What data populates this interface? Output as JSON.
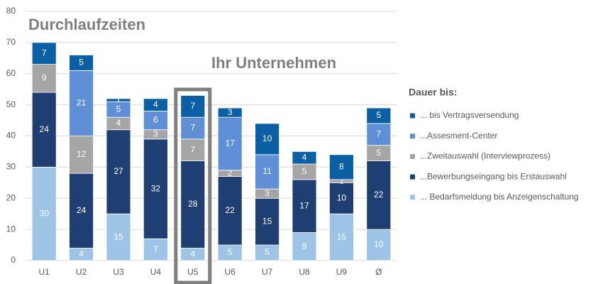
{
  "chart_data": {
    "type": "stacked_bar",
    "title": "Durchlaufzeiten",
    "annotation": "Ihr Unternehmen",
    "legend_title": "Dauer bis:",
    "categories": [
      "U1",
      "U2",
      "U3",
      "U4",
      "U5",
      "U6",
      "U7",
      "U8",
      "U9",
      "Ø"
    ],
    "highlight": "U5",
    "series": [
      {
        "name": "... Bedarfsmeldung bis Anzeigenschaltung",
        "color": "#9dc3e6",
        "values": [
          30,
          4,
          15,
          7,
          4,
          5,
          5,
          9,
          15,
          10
        ]
      },
      {
        "name": "...Bewerbungseingang bis Erstauswahl",
        "color": "#1f3f73",
        "values": [
          24,
          24,
          27,
          32,
          28,
          22,
          15,
          17,
          10,
          22
        ]
      },
      {
        "name": "...Zweitauswahl (Interviewprozess)",
        "color": "#a5a5a5",
        "values": [
          9,
          12,
          4,
          3,
          7,
          2,
          3,
          5,
          1,
          5
        ]
      },
      {
        "name": "...Assesment-Center",
        "color": "#5f8fd6",
        "values": [
          null,
          21,
          5,
          6,
          7,
          17,
          11,
          null,
          null,
          7
        ]
      },
      {
        "name": "... bis Vertragsversendung",
        "color": "#0b5fa5",
        "values": [
          7,
          5,
          1,
          4,
          7,
          3,
          10,
          4,
          8,
          5
        ]
      }
    ],
    "ylim": [
      0,
      80
    ],
    "yticks": [
      0,
      10,
      20,
      30,
      40,
      50,
      60,
      70,
      80
    ],
    "grid": true,
    "legend": "right"
  }
}
